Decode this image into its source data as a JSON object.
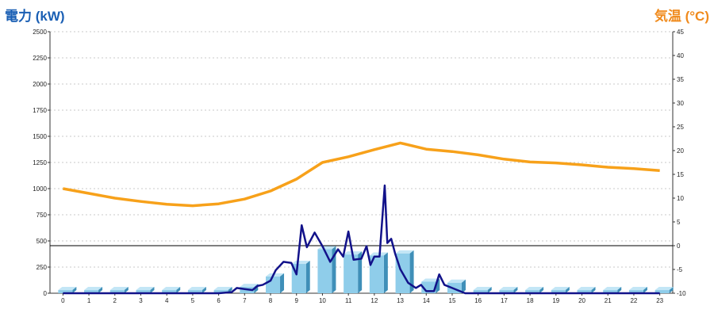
{
  "chart_data": {
    "type": "bar+line",
    "left_axis_label": "電力 (kW)",
    "right_axis_label": "気温 (°C)",
    "x_ticks": [
      "0",
      "1",
      "2",
      "3",
      "4",
      "5",
      "6",
      "7",
      "8",
      "9",
      "10",
      "11",
      "12",
      "13",
      "14",
      "15",
      "16",
      "17",
      "18",
      "19",
      "20",
      "21",
      "22",
      "23"
    ],
    "left_ylim": [
      0,
      2500
    ],
    "left_ticks": [
      0,
      250,
      500,
      750,
      1000,
      1250,
      1500,
      1750,
      2000,
      2250,
      2500
    ],
    "right_ylim": [
      -10,
      45
    ],
    "right_ticks": [
      -10,
      -5,
      0,
      5,
      10,
      15,
      20,
      25,
      30,
      35,
      40,
      45
    ],
    "reference_line_right": 0,
    "grid": "horizontal dotted",
    "colors": {
      "bar_face": "#8fcdea",
      "bar_side": "#3f8fb8",
      "bar_top": "#c3e6f6",
      "power_line": "#12128a",
      "temp_line": "#f7a11a",
      "left_label": "#1a5fb4",
      "right_label": "#f08a1c"
    },
    "hourly_power_bars": [
      30,
      30,
      30,
      30,
      30,
      30,
      30,
      60,
      160,
      280,
      420,
      370,
      360,
      380,
      110,
      100,
      30,
      30,
      30,
      30,
      30,
      30,
      30,
      30
    ],
    "power_line": {
      "x": [
        0,
        1,
        2,
        3,
        4,
        5,
        6,
        6.5,
        6.7,
        7,
        7.3,
        7.5,
        7.7,
        8,
        8.2,
        8.5,
        8.8,
        9,
        9.2,
        9.4,
        9.7,
        10,
        10.3,
        10.6,
        10.8,
        11,
        11.2,
        11.5,
        11.7,
        11.85,
        12,
        12.2,
        12.4,
        12.5,
        12.65,
        12.8,
        13,
        13.3,
        13.6,
        13.8,
        14,
        14.3,
        14.5,
        14.7,
        15,
        15.3,
        15.5,
        16,
        17,
        18,
        19,
        20,
        21,
        22,
        23
      ],
      "y": [
        0,
        0,
        0,
        0,
        0,
        0,
        0,
        10,
        50,
        40,
        30,
        70,
        80,
        120,
        220,
        300,
        290,
        180,
        650,
        440,
        580,
        450,
        300,
        420,
        350,
        590,
        320,
        330,
        450,
        270,
        350,
        350,
        1030,
        480,
        520,
        380,
        230,
        100,
        50,
        80,
        20,
        20,
        180,
        80,
        50,
        20,
        0,
        0,
        0,
        0,
        0,
        0,
        0,
        0,
        0
      ]
    },
    "temperature_line": {
      "x": [
        0,
        1,
        2,
        3,
        4,
        5,
        6,
        7,
        8,
        9,
        10,
        11,
        12,
        13,
        14,
        15,
        16,
        17,
        18,
        19,
        20,
        21,
        22,
        23
      ],
      "y": [
        12,
        11,
        10,
        9.3,
        8.7,
        8.4,
        8.8,
        9.8,
        11.5,
        14,
        17.5,
        18.7,
        20.2,
        21.6,
        20.3,
        19.8,
        19.1,
        18.2,
        17.6,
        17.4,
        17.0,
        16.5,
        16.2,
        15.8
      ]
    }
  }
}
